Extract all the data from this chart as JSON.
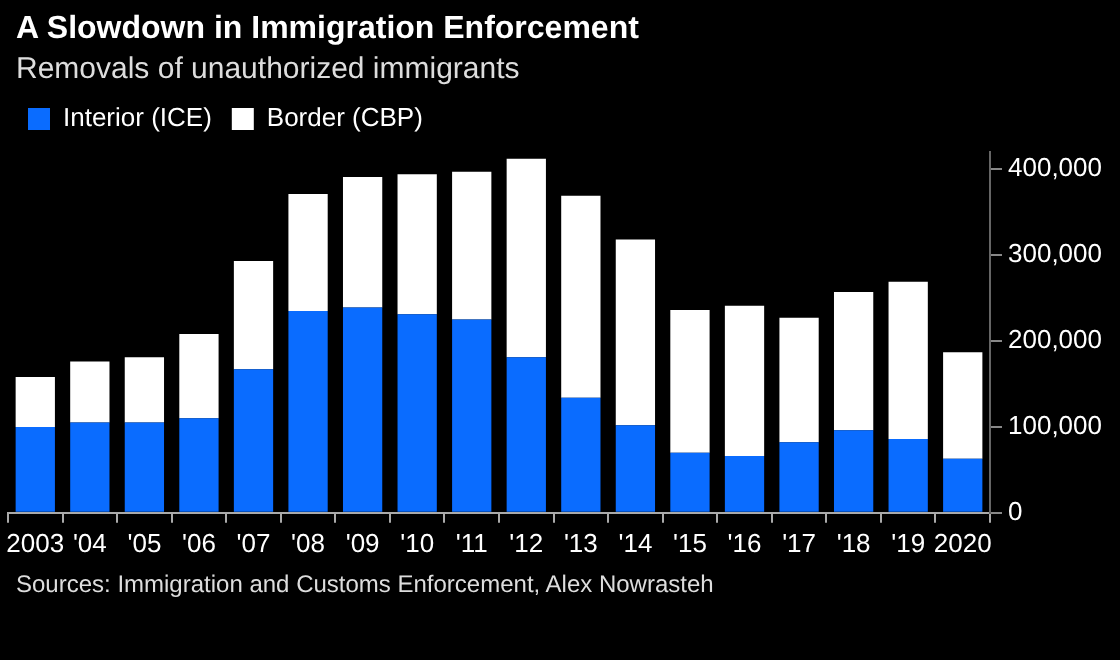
{
  "chart_data": {
    "type": "bar",
    "title": "A Slowdown in Immigration Enforcement",
    "subtitle": "Removals of unauthorized immigrants",
    "categories": [
      "2003",
      "'04",
      "'05",
      "'06",
      "'07",
      "'08",
      "'09",
      "'10",
      "'11",
      "'12",
      "'13",
      "'14",
      "'15",
      "'16",
      "'17",
      "'18",
      "'19",
      "2020"
    ],
    "series": [
      {
        "name": "Interior (ICE)",
        "color": "#0a6cff",
        "values": [
          100000,
          105000,
          105000,
          110000,
          167000,
          235000,
          239000,
          231000,
          225000,
          181000,
          134000,
          102000,
          70000,
          66000,
          82000,
          96000,
          86000,
          63000
        ]
      },
      {
        "name": "Border (CBP)",
        "color": "#ffffff",
        "values": [
          58000,
          71000,
          76000,
          98000,
          126000,
          136000,
          152000,
          163000,
          172000,
          231000,
          235000,
          216000,
          166000,
          175000,
          145000,
          161000,
          183000,
          124000
        ]
      }
    ],
    "stacked": true,
    "ylim": [
      0,
      420000
    ],
    "yticks": [
      0,
      {
        "value": 100000,
        "label": "100,000"
      },
      {
        "value": 200000,
        "label": "200,000"
      },
      {
        "value": 300000,
        "label": "300,000"
      },
      {
        "value": 400000,
        "label": "400,000"
      }
    ],
    "grid": false,
    "legend": "top left",
    "annotations": [
      "Sources: Immigration and Customs Enforcement, Alex Nowrasteh"
    ]
  }
}
